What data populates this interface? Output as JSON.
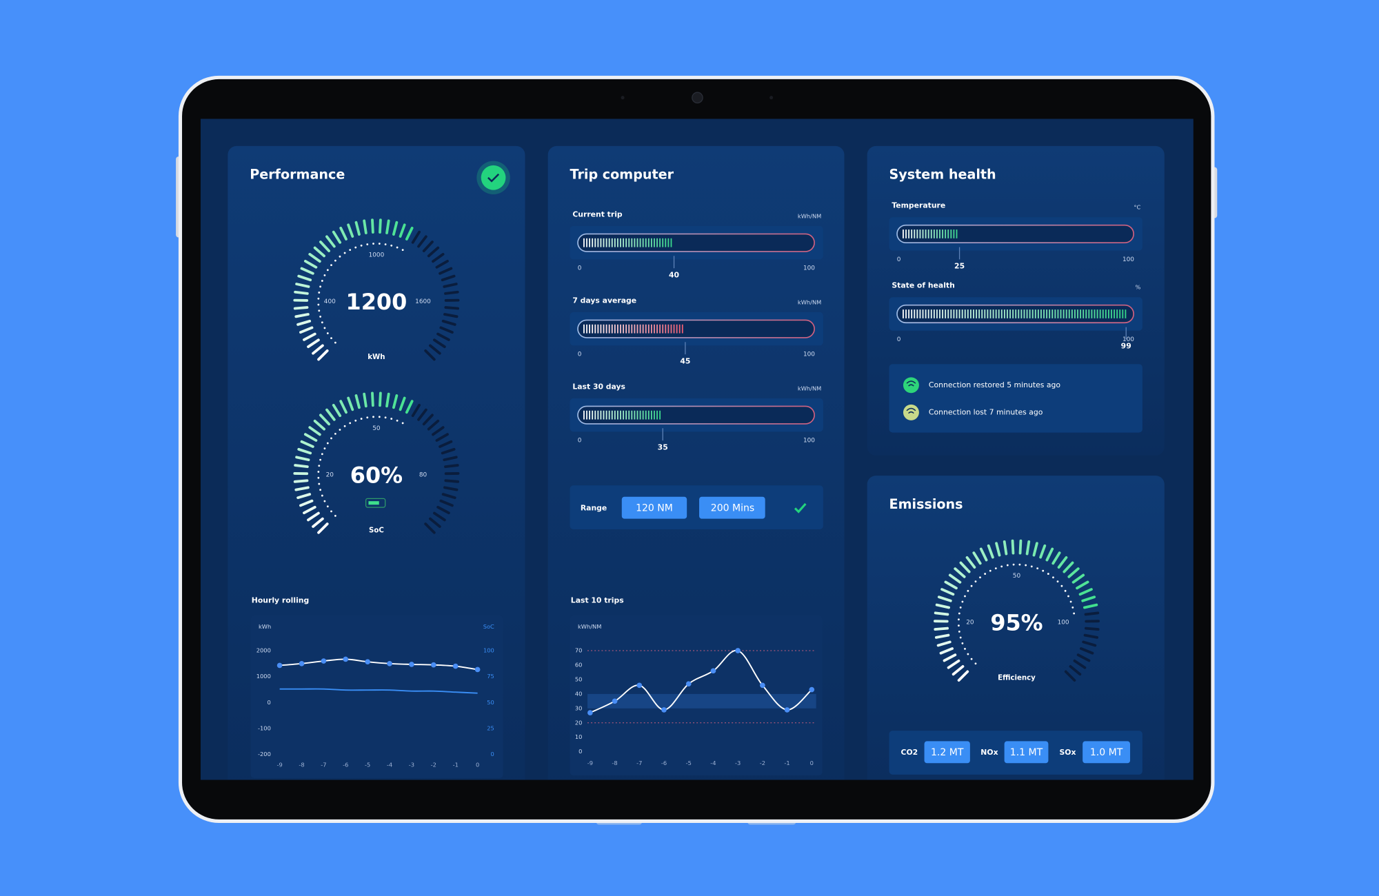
{
  "performance": {
    "title": "Performance",
    "energy_gauge": {
      "value": 1200,
      "ticks": [
        400,
        1000,
        1600
      ],
      "unit": "kWh"
    },
    "soc_gauge": {
      "value": 60,
      "value_label": "60%",
      "ticks": [
        20,
        50,
        80
      ],
      "label": "SoC"
    },
    "hourly_rolling": {
      "title": "Hourly rolling",
      "y_label": "kWh",
      "y2_label": "SoC",
      "yticks": [
        2000,
        1000,
        0,
        -100,
        -200
      ],
      "y2ticks": [
        100,
        75,
        50,
        25,
        0
      ],
      "xticks": [
        -9,
        -8,
        -7,
        -6,
        -5,
        -4,
        -3,
        -2,
        -1,
        0
      ],
      "kwh_values": [
        1430,
        1500,
        1600,
        1670,
        1570,
        1500,
        1470,
        1450,
        1400,
        1270
      ],
      "soc_values": [
        63,
        63,
        63,
        62,
        62,
        62,
        61,
        61,
        60,
        59
      ]
    }
  },
  "trip_computer": {
    "title": "Trip computer",
    "bars": [
      {
        "label": "Current trip",
        "unit": "kWh/NM",
        "min": 0,
        "max": 100,
        "value": 40,
        "color": "#34d889"
      },
      {
        "label": "7 days average",
        "unit": "kWh/NM",
        "min": 0,
        "max": 100,
        "value": 45,
        "color": "#ef5a6f"
      },
      {
        "label": "Last 30 days",
        "unit": "kWh/NM",
        "min": 0,
        "max": 100,
        "value": 35,
        "color": "#34d889"
      }
    ],
    "range": {
      "label": "Range",
      "distance": "120 NM",
      "time": "200 Mins"
    },
    "last_10_trips": {
      "title": "Last 10 trips",
      "y_label": "kWh/NM",
      "yticks": [
        0,
        10,
        20,
        30,
        40,
        50,
        60,
        70
      ],
      "xticks": [
        -9,
        -8,
        -7,
        -6,
        -5,
        -4,
        -3,
        -2,
        -1,
        0
      ],
      "values": [
        27,
        35,
        46,
        29,
        47,
        56,
        70,
        46,
        29,
        43
      ]
    }
  },
  "system_health": {
    "title": "System health",
    "bars": [
      {
        "label": "Temperature",
        "unit": "°C",
        "min": 0,
        "max": 100,
        "value": 25,
        "color": "#34d889"
      },
      {
        "label": "State of health",
        "unit": "%",
        "min": 0,
        "max": 100,
        "value": 99,
        "color": "#34d889"
      }
    ],
    "events": [
      "Connection restored 5 minutes ago",
      "Connection lost 7 minutes ago"
    ]
  },
  "emissions": {
    "title": "Emissions",
    "gauge": {
      "value": 95,
      "value_label": "95%",
      "ticks": [
        20,
        50,
        100
      ],
      "label": "Efficiency"
    },
    "pollutants": [
      {
        "name": "CO2",
        "amount": "1.2 MT"
      },
      {
        "name": "NOx",
        "amount": "1.1 MT"
      },
      {
        "name": "SOx",
        "amount": "1.0 MT"
      }
    ]
  }
}
